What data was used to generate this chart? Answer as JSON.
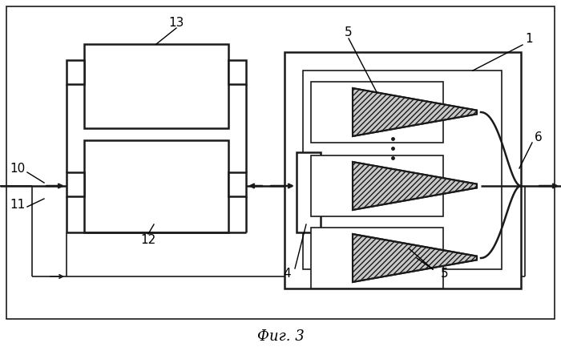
{
  "bg_color": "#ffffff",
  "line_color": "#1a1a1a",
  "fig_label": "Фиг. 3",
  "fig_label_fontsize": 13,
  "annotation_fontsize": 11
}
